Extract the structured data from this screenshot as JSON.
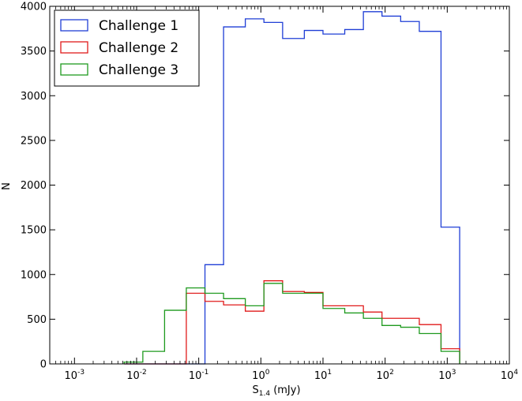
{
  "chart_data": {
    "type": "histogram",
    "xscale": "log",
    "xlim": [
      0.0004,
      10000
    ],
    "ylim": [
      0,
      4000
    ],
    "xlabel_base": "S",
    "xlabel_subscript": "1.4",
    "xlabel_unit": " (mJy)",
    "ylabel": "N",
    "grid": false,
    "legend_position": "top-left",
    "x_ticks": [
      {
        "base": "10",
        "exp": "-3",
        "value": 0.001
      },
      {
        "base": "10",
        "exp": "-2",
        "value": 0.01
      },
      {
        "base": "10",
        "exp": "-1",
        "value": 0.1
      },
      {
        "base": "10",
        "exp": "0",
        "value": 1
      },
      {
        "base": "10",
        "exp": "1",
        "value": 10
      },
      {
        "base": "10",
        "exp": "2",
        "value": 100
      },
      {
        "base": "10",
        "exp": "3",
        "value": 1000
      },
      {
        "base": "10",
        "exp": "4",
        "value": 10000
      }
    ],
    "y_ticks": [
      "0",
      "500",
      "1000",
      "1500",
      "2000",
      "2500",
      "3000",
      "3500",
      "4000"
    ],
    "bin_edges": [
      0.0063,
      0.0126,
      0.0282,
      0.0631,
      0.126,
      0.251,
      0.562,
      1.12,
      2.24,
      5.01,
      10.0,
      22.4,
      44.7,
      89.1,
      178,
      355,
      794,
      1585
    ],
    "series": [
      {
        "name": "Challenge 1",
        "color": "#1f3ed6",
        "values": [
          0,
          0,
          0,
          0,
          1110,
          3770,
          3860,
          3820,
          3640,
          3730,
          3690,
          3740,
          3940,
          3890,
          3830,
          3720,
          1530
        ]
      },
      {
        "name": "Challenge 2",
        "color": "#e01b1b",
        "values": [
          0,
          0,
          0,
          790,
          700,
          660,
          590,
          930,
          810,
          800,
          650,
          650,
          580,
          510,
          510,
          440,
          170
        ]
      },
      {
        "name": "Challenge 3",
        "color": "#1f9a1f",
        "values": [
          20,
          140,
          600,
          850,
          790,
          730,
          650,
          900,
          790,
          790,
          620,
          570,
          510,
          430,
          410,
          340,
          140
        ]
      }
    ]
  }
}
